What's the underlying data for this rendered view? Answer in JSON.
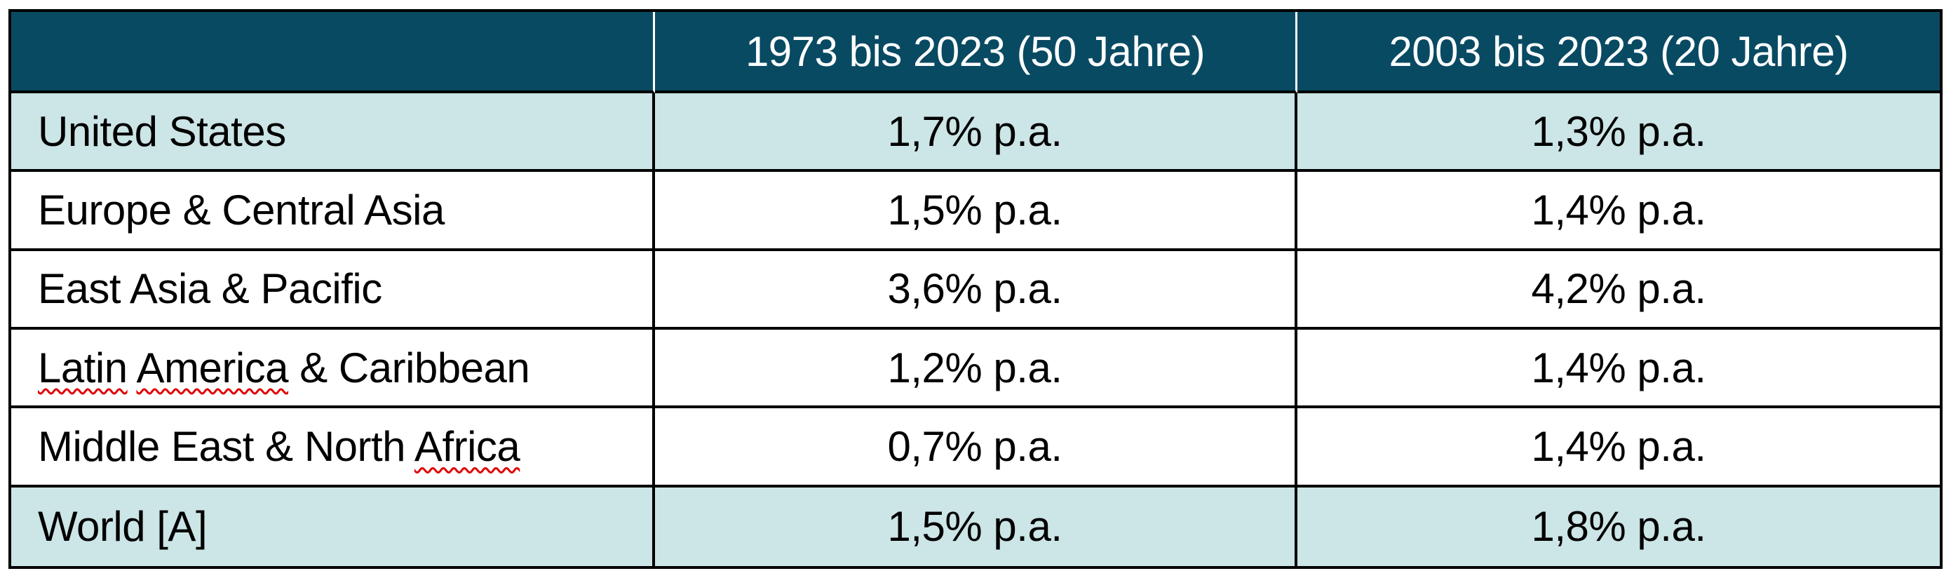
{
  "table": {
    "headers": [
      "",
      "1973 bis 2023 (50 Jahre)",
      "2003 bis 2023 (20 Jahre)"
    ],
    "rows": [
      {
        "region": [
          {
            "t": "United States"
          }
        ],
        "values": [
          "1,7% p.a.",
          "1,3% p.a."
        ],
        "shaded": true
      },
      {
        "region": [
          {
            "t": "Europe & Central Asia"
          }
        ],
        "values": [
          "1,5% p.a.",
          "1,4% p.a."
        ],
        "shaded": false
      },
      {
        "region": [
          {
            "t": "East Asia & Pacific"
          }
        ],
        "values": [
          "3,6% p.a.",
          "4,2% p.a."
        ],
        "shaded": false
      },
      {
        "region": [
          {
            "t": "Latin",
            "spell": true
          },
          {
            "t": " "
          },
          {
            "t": "America",
            "spell": true
          },
          {
            "t": " & Caribbean"
          }
        ],
        "values": [
          "1,2% p.a.",
          "1,4% p.a."
        ],
        "shaded": false
      },
      {
        "region": [
          {
            "t": "Middle East & North "
          },
          {
            "t": "Africa",
            "spell": true
          }
        ],
        "values": [
          "0,7% p.a.",
          "1,4% p.a."
        ],
        "shaded": false
      },
      {
        "region": [
          {
            "t": "World [A]"
          }
        ],
        "values": [
          "1,5% p.a.",
          "1,8% p.a."
        ],
        "shaded": true
      }
    ]
  },
  "colors": {
    "header_bg": "#094A63",
    "shaded_row_bg": "#CCE5E6",
    "border": "#000000",
    "header_text": "#FFFFFF",
    "body_text": "#000000",
    "spellcheck": "#E00000",
    "page_bg": "#FFFFFF"
  }
}
